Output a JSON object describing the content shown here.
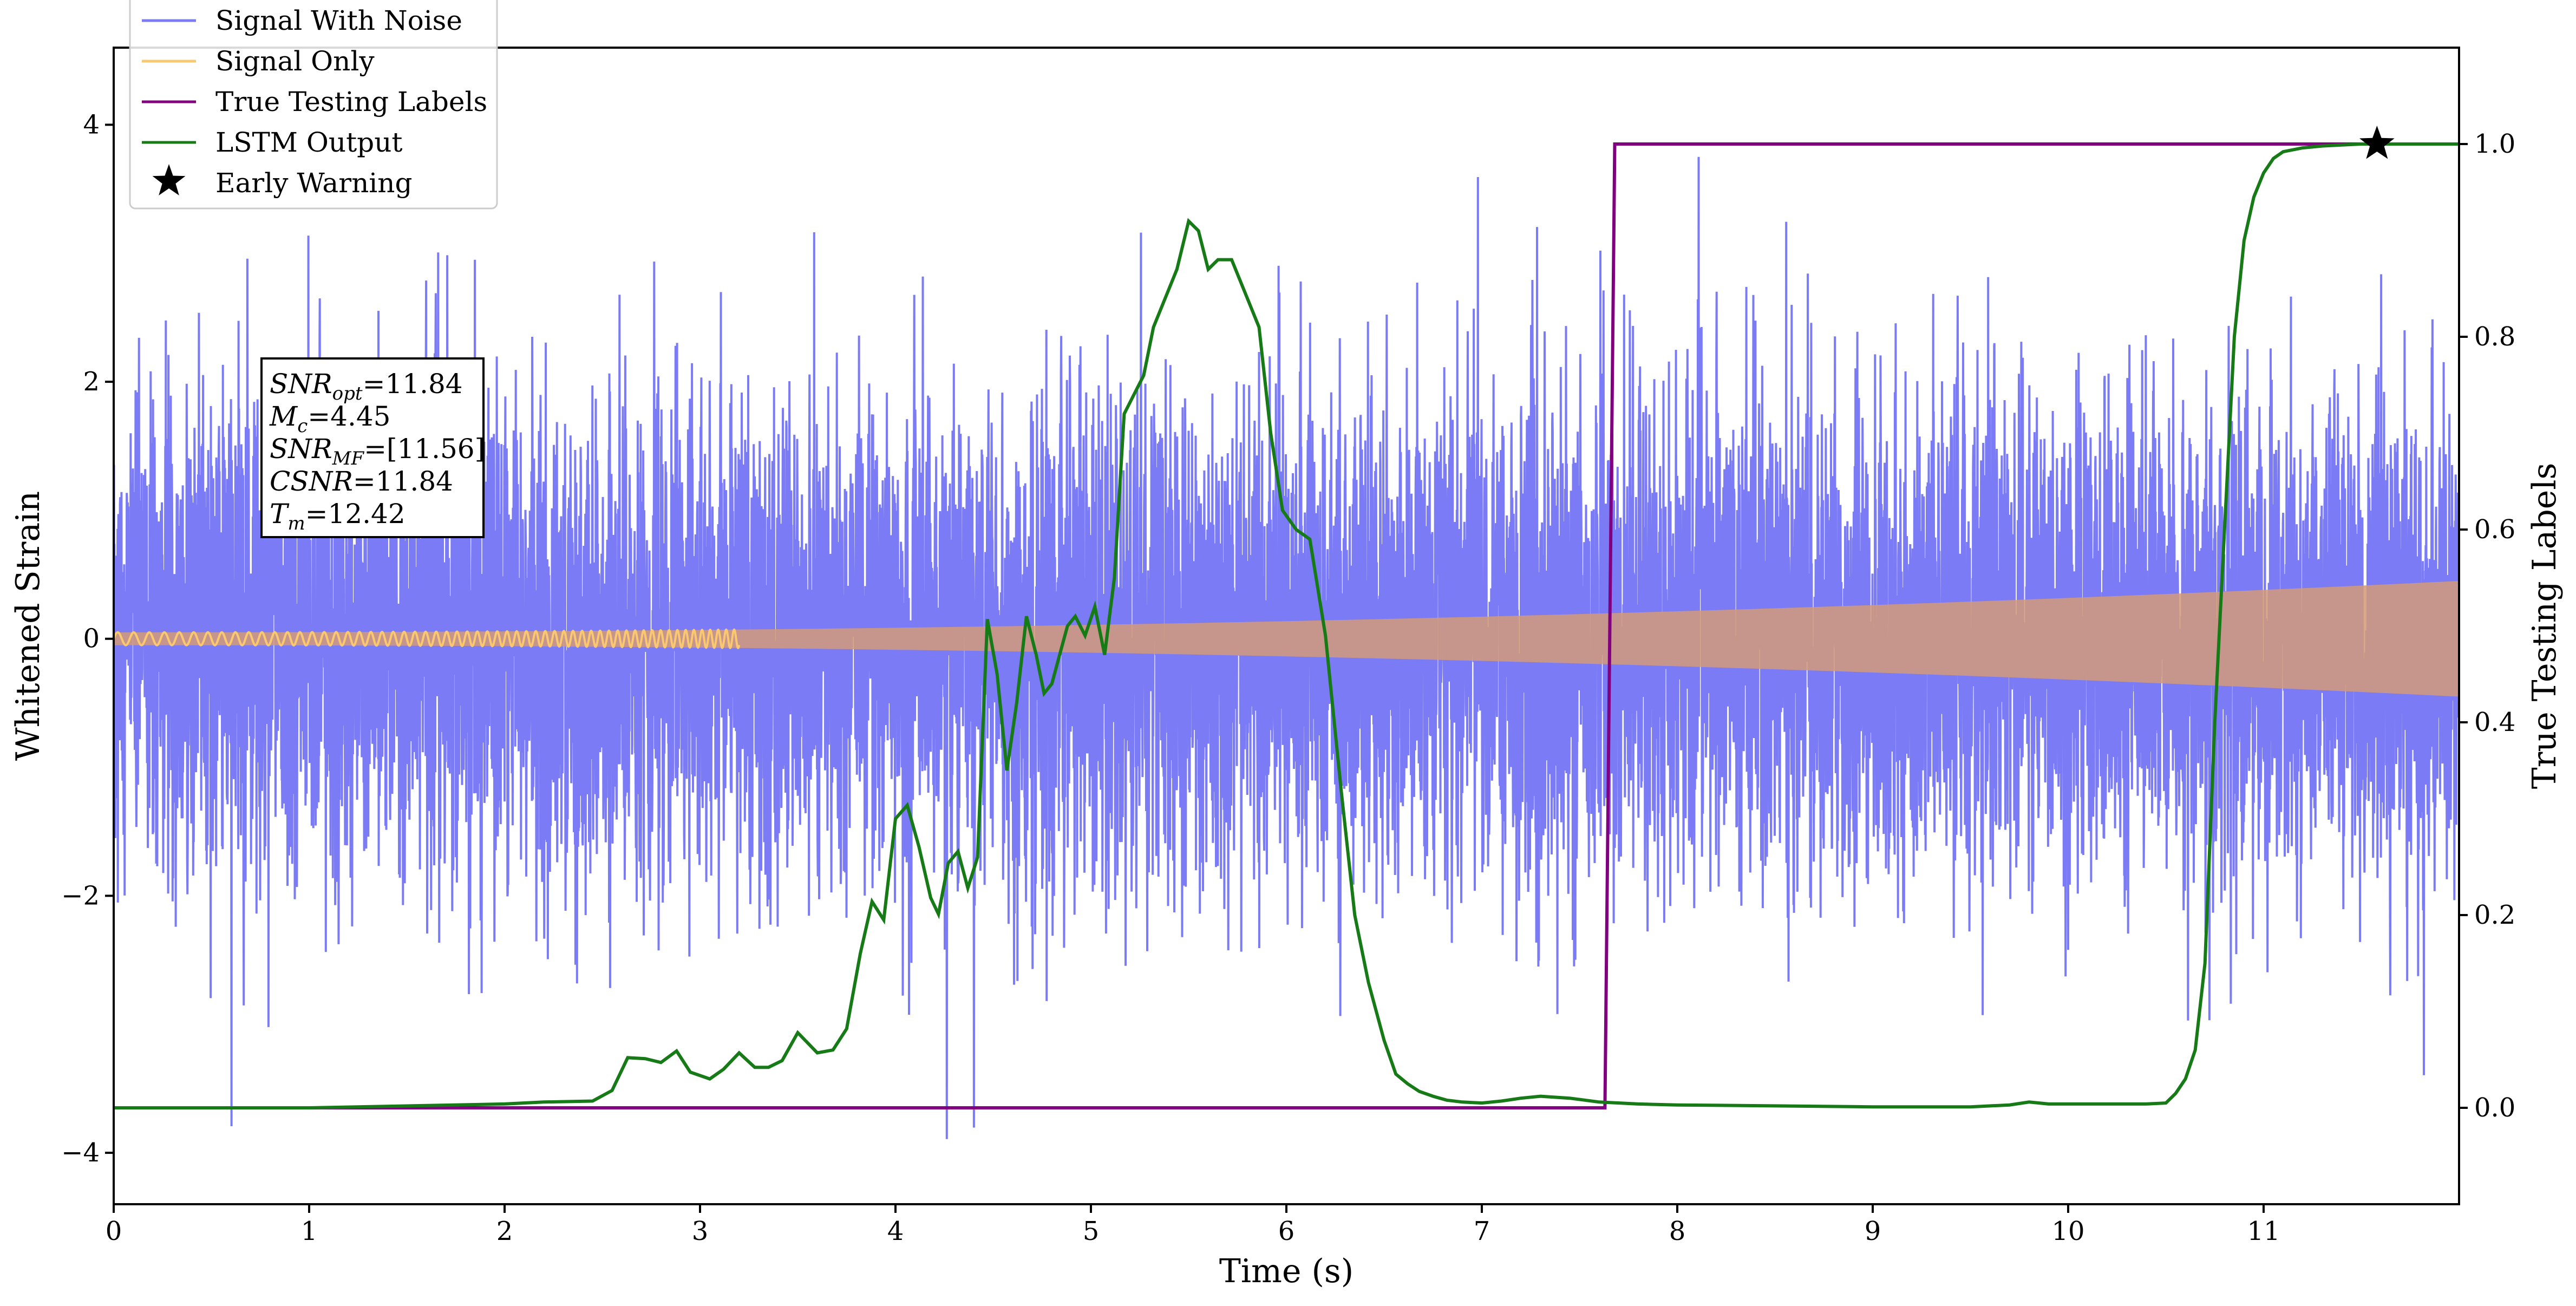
{
  "chart_data": {
    "type": "line",
    "xlabel": "Time (s)",
    "ylabel_left": "Whitened Strain",
    "ylabel_right": "True Testing Labels",
    "xlim": [
      0,
      12
    ],
    "ylim_left": [
      -4.4,
      4.6
    ],
    "ylim_right": [
      -0.1,
      1.1
    ],
    "x_ticks": [
      0,
      1,
      2,
      3,
      4,
      5,
      6,
      7,
      8,
      9,
      10,
      11
    ],
    "x_tick_labels": [
      "0",
      "1",
      "2",
      "3",
      "4",
      "5",
      "6",
      "7",
      "8",
      "9",
      "10",
      "11"
    ],
    "y_left_ticks": [
      -4,
      -2,
      0,
      2,
      4
    ],
    "y_left_tick_labels": [
      "−4",
      "−2",
      "0",
      "2",
      "4"
    ],
    "y_right_ticks": [
      0.0,
      0.2,
      0.4,
      0.6,
      0.8,
      1.0
    ],
    "y_right_tick_labels": [
      "0.0",
      "0.2",
      "0.4",
      "0.6",
      "0.8",
      "1.0"
    ],
    "grid": false,
    "legend": {
      "position": "top-left",
      "entries": [
        {
          "label": "Signal With Noise",
          "color": "#7b7bf5",
          "marker": "line"
        },
        {
          "label": "Signal Only",
          "color": "#f9c870",
          "marker": "line"
        },
        {
          "label": "True Testing Labels",
          "color": "#800080",
          "marker": "line"
        },
        {
          "label": "LSTM Output",
          "color": "#167a16",
          "marker": "line"
        },
        {
          "label": "Early Warning",
          "color": "#000000",
          "marker": "star"
        }
      ]
    },
    "annotation": {
      "lines": [
        {
          "base": "SNR",
          "sub": "opt",
          "value": "=11.84"
        },
        {
          "base": "M",
          "sub": "c",
          "value": "=4.45"
        },
        {
          "base": "SNR",
          "sub": "MF",
          "value": "=[11.56]"
        },
        {
          "base": "CSNR",
          "sub": "",
          "value": "=11.84"
        },
        {
          "base": "T",
          "sub": "m",
          "value": "=12.42"
        }
      ]
    },
    "series": [
      {
        "name": "Signal With Noise",
        "axis": "left",
        "color": "#7b7bf5",
        "style": "noise",
        "sigma": 0.95,
        "peak_max": 3.9,
        "peak_min": -4.0
      },
      {
        "name": "Signal Only",
        "axis": "left",
        "color": "#f9c870",
        "style": "chirp",
        "amplitude_start": 0.05,
        "amplitude_end": 0.45,
        "t_merger": 12.42
      },
      {
        "name": "True Testing Labels",
        "axis": "right",
        "color": "#800080",
        "x": [
          0,
          7.63,
          7.68,
          12
        ],
        "y": [
          0,
          0,
          1.0,
          1.0
        ]
      },
      {
        "name": "LSTM Output",
        "axis": "right",
        "color": "#167a16",
        "x": [
          0,
          1.0,
          2.0,
          2.2,
          2.45,
          2.55,
          2.63,
          2.72,
          2.8,
          2.88,
          2.95,
          3.05,
          3.12,
          3.2,
          3.28,
          3.35,
          3.42,
          3.5,
          3.6,
          3.68,
          3.75,
          3.82,
          3.88,
          3.94,
          4.0,
          4.06,
          4.12,
          4.18,
          4.22,
          4.27,
          4.32,
          4.37,
          4.42,
          4.47,
          4.52,
          4.57,
          4.62,
          4.67,
          4.72,
          4.76,
          4.8,
          4.84,
          4.88,
          4.92,
          4.97,
          5.02,
          5.07,
          5.12,
          5.17,
          5.22,
          5.27,
          5.32,
          5.38,
          5.44,
          5.5,
          5.55,
          5.6,
          5.65,
          5.72,
          5.8,
          5.86,
          5.92,
          5.98,
          6.05,
          6.12,
          6.2,
          6.28,
          6.35,
          6.42,
          6.5,
          6.56,
          6.62,
          6.68,
          6.75,
          6.82,
          6.9,
          7.0,
          7.1,
          7.2,
          7.3,
          7.45,
          7.6,
          7.8,
          8.0,
          8.5,
          9.0,
          9.5,
          9.7,
          9.8,
          9.9,
          10.0,
          10.2,
          10.4,
          10.5,
          10.55,
          10.6,
          10.65,
          10.7,
          10.75,
          10.8,
          10.85,
          10.9,
          10.95,
          11.0,
          11.05,
          11.1,
          11.2,
          11.3,
          11.5,
          11.7,
          12.0
        ],
        "y": [
          0.0,
          0.0,
          0.004,
          0.006,
          0.007,
          0.018,
          0.052,
          0.051,
          0.047,
          0.059,
          0.037,
          0.03,
          0.04,
          0.057,
          0.042,
          0.042,
          0.049,
          0.078,
          0.057,
          0.06,
          0.082,
          0.16,
          0.214,
          0.195,
          0.3,
          0.314,
          0.271,
          0.218,
          0.201,
          0.254,
          0.266,
          0.228,
          0.26,
          0.507,
          0.45,
          0.35,
          0.42,
          0.51,
          0.47,
          0.43,
          0.44,
          0.47,
          0.5,
          0.51,
          0.49,
          0.52,
          0.47,
          0.55,
          0.72,
          0.74,
          0.76,
          0.81,
          0.84,
          0.87,
          0.92,
          0.91,
          0.87,
          0.88,
          0.88,
          0.84,
          0.81,
          0.7,
          0.62,
          0.6,
          0.59,
          0.49,
          0.33,
          0.2,
          0.13,
          0.07,
          0.035,
          0.025,
          0.017,
          0.012,
          0.008,
          0.006,
          0.005,
          0.007,
          0.01,
          0.012,
          0.01,
          0.006,
          0.004,
          0.003,
          0.002,
          0.001,
          0.001,
          0.003,
          0.006,
          0.004,
          0.004,
          0.004,
          0.004,
          0.005,
          0.015,
          0.03,
          0.06,
          0.15,
          0.4,
          0.6,
          0.8,
          0.9,
          0.945,
          0.97,
          0.985,
          0.992,
          0.996,
          0.998,
          1.0,
          1.0,
          1.0
        ]
      },
      {
        "name": "Early Warning",
        "axis": "right",
        "color": "#000000",
        "marker": "star",
        "x": [
          11.58
        ],
        "y": [
          1.0
        ]
      }
    ]
  }
}
